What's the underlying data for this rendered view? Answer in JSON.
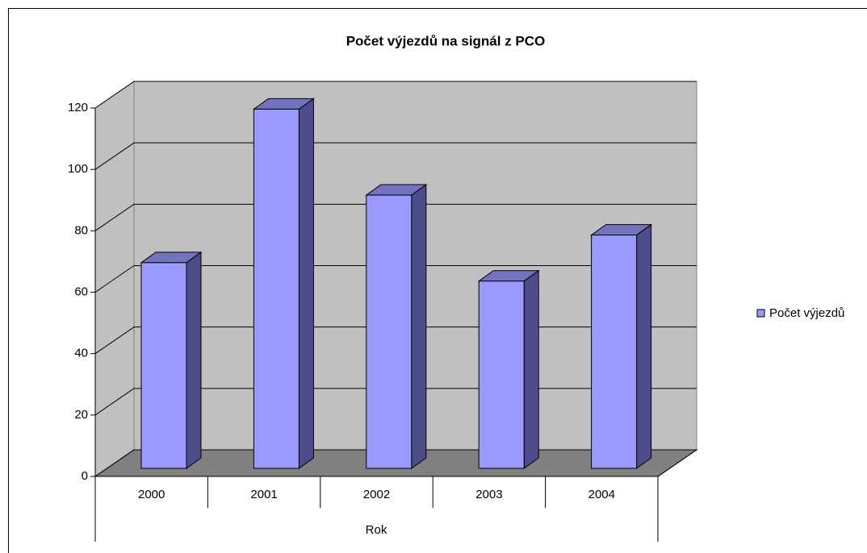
{
  "chart_data": {
    "type": "bar3d",
    "title": "Počet výjezdů na signál z PCO",
    "x_label": "Rok",
    "categories": [
      "2000",
      "2001",
      "2002",
      "2003",
      "2004"
    ],
    "series": [
      {
        "name": "Počet výjezdů",
        "color": "#9999ff",
        "values": [
          67,
          117,
          89,
          61,
          76
        ]
      }
    ],
    "ylim": [
      0,
      120
    ],
    "yticks": [
      0,
      20,
      40,
      60,
      80,
      100,
      120
    ],
    "grid": true,
    "legend": "right"
  }
}
